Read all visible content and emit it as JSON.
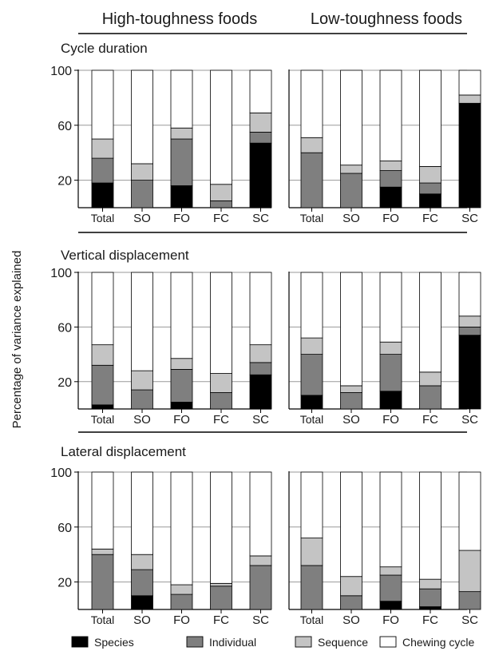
{
  "column_headers": [
    "High-toughness foods",
    "Low-toughness foods"
  ],
  "ylabel": "Percentage of variance explained",
  "legend": [
    {
      "label": "Species",
      "color": "#000000"
    },
    {
      "label": "Individual",
      "color": "#7f7f7f"
    },
    {
      "label": "Sequence",
      "color": "#c4c4c4"
    },
    {
      "label": "Chewing cycle",
      "color": "#ffffff"
    }
  ],
  "chart_data": {
    "type": "bar",
    "stacked": true,
    "categories": [
      "Total",
      "SO",
      "FO",
      "FC",
      "SC"
    ],
    "yticks": [
      20,
      60,
      100
    ],
    "ylim": [
      0,
      100
    ],
    "grid": true,
    "legend_placement": "bottom",
    "panels": [
      {
        "title": "Cycle duration",
        "groups": [
          {
            "food": "High-toughness foods",
            "series": [
              {
                "name": "Species",
                "values": [
                  18,
                  0,
                  16,
                  0,
                  47
                ]
              },
              {
                "name": "Individual",
                "values": [
                  18,
                  20,
                  34,
                  5,
                  8
                ]
              },
              {
                "name": "Sequence",
                "values": [
                  14,
                  12,
                  8,
                  12,
                  14
                ]
              },
              {
                "name": "Chewing cycle",
                "values": [
                  50,
                  68,
                  42,
                  83,
                  31
                ]
              }
            ]
          },
          {
            "food": "Low-toughness foods",
            "series": [
              {
                "name": "Species",
                "values": [
                  0,
                  0,
                  15,
                  10,
                  76
                ]
              },
              {
                "name": "Individual",
                "values": [
                  40,
                  25,
                  12,
                  8,
                  0
                ]
              },
              {
                "name": "Sequence",
                "values": [
                  11,
                  6,
                  7,
                  12,
                  6
                ]
              },
              {
                "name": "Chewing cycle",
                "values": [
                  49,
                  69,
                  66,
                  70,
                  18
                ]
              }
            ]
          }
        ]
      },
      {
        "title": "Vertical displacement",
        "groups": [
          {
            "food": "High-toughness foods",
            "series": [
              {
                "name": "Species",
                "values": [
                  3,
                  0,
                  5,
                  0,
                  25
                ]
              },
              {
                "name": "Individual",
                "values": [
                  29,
                  14,
                  24,
                  12,
                  9
                ]
              },
              {
                "name": "Sequence",
                "values": [
                  15,
                  14,
                  8,
                  14,
                  13
                ]
              },
              {
                "name": "Chewing cycle",
                "values": [
                  53,
                  72,
                  63,
                  74,
                  53
                ]
              }
            ]
          },
          {
            "food": "Low-toughness foods",
            "series": [
              {
                "name": "Species",
                "values": [
                  10,
                  0,
                  13,
                  0,
                  54
                ]
              },
              {
                "name": "Individual",
                "values": [
                  30,
                  12,
                  27,
                  17,
                  6
                ]
              },
              {
                "name": "Sequence",
                "values": [
                  12,
                  5,
                  9,
                  10,
                  8
                ]
              },
              {
                "name": "Chewing cycle",
                "values": [
                  48,
                  83,
                  51,
                  73,
                  32
                ]
              }
            ]
          }
        ]
      },
      {
        "title": "Lateral displacement",
        "groups": [
          {
            "food": "High-toughness foods",
            "series": [
              {
                "name": "Species",
                "values": [
                  0,
                  10,
                  0,
                  0,
                  0
                ]
              },
              {
                "name": "Individual",
                "values": [
                  40,
                  19,
                  11,
                  17,
                  32
                ]
              },
              {
                "name": "Sequence",
                "values": [
                  4,
                  11,
                  7,
                  2,
                  7
                ]
              },
              {
                "name": "Chewing cycle",
                "values": [
                  56,
                  60,
                  82,
                  81,
                  61
                ]
              }
            ]
          },
          {
            "food": "Low-toughness foods",
            "series": [
              {
                "name": "Species",
                "values": [
                  0,
                  0,
                  6,
                  2,
                  0
                ]
              },
              {
                "name": "Individual",
                "values": [
                  32,
                  10,
                  19,
                  13,
                  13
                ]
              },
              {
                "name": "Sequence",
                "values": [
                  20,
                  14,
                  6,
                  7,
                  30
                ]
              },
              {
                "name": "Chewing cycle",
                "values": [
                  48,
                  76,
                  69,
                  78,
                  57
                ]
              }
            ]
          }
        ]
      }
    ]
  }
}
